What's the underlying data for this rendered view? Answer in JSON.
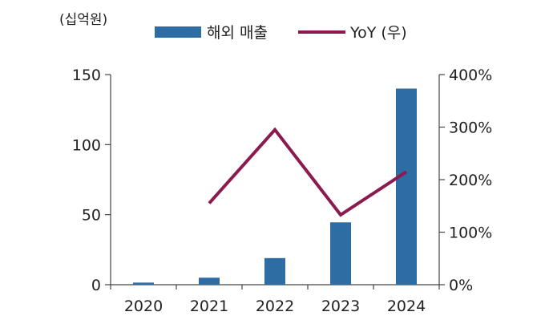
{
  "chart_data": {
    "type": "bar",
    "unit_label": "(십억원)",
    "categories": [
      "2020",
      "2021",
      "2022",
      "2023",
      "2024"
    ],
    "series": [
      {
        "name": "해외 매출",
        "type": "bar",
        "axis": "left",
        "color": "#2E6DA4",
        "values": [
          1.5,
          5,
          19,
          44.5,
          140
        ]
      },
      {
        "name": "YoY (우)",
        "type": "line",
        "axis": "right",
        "color": "#8B1A4E",
        "values": [
          null,
          155,
          295,
          133,
          215
        ]
      }
    ],
    "y_left": {
      "ylim": [
        0,
        150
      ],
      "ticks": [
        0,
        50,
        100,
        150
      ],
      "tick_labels": [
        "0",
        "50",
        "100",
        "150"
      ]
    },
    "y_right": {
      "ylim": [
        0,
        400
      ],
      "ticks": [
        0,
        100,
        200,
        300,
        400
      ],
      "tick_labels": [
        "0%",
        "100%",
        "200%",
        "300%",
        "400%"
      ]
    },
    "legend_position": "top",
    "grid": false
  }
}
